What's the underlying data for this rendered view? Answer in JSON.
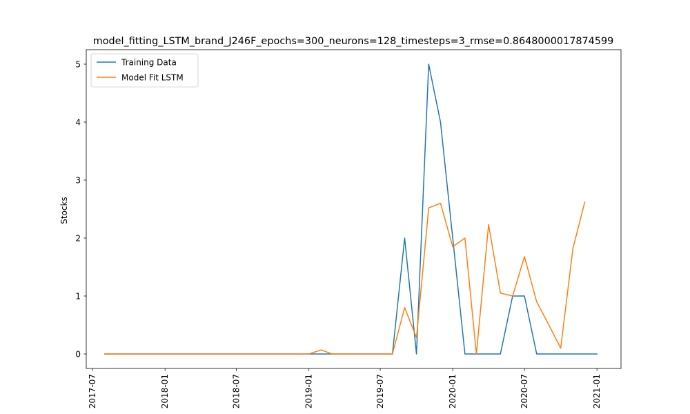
{
  "chart_data": {
    "type": "line",
    "title": "model_fitting_LSTM_brand_J246F_epochs=300_neurons=128_timesteps=3_rmse=0.8648000017874599",
    "xlabel": "",
    "ylabel": "Stocks",
    "x_ticks": [
      "2017-07",
      "2018-01",
      "2018-07",
      "2019-01",
      "2019-07",
      "2020-01",
      "2020-07",
      "2021-01"
    ],
    "y_ticks": [
      0,
      1,
      2,
      3,
      4,
      5
    ],
    "ylim": [
      -0.25,
      5.25
    ],
    "xlim": [
      "2017-06-15",
      "2021-03-03"
    ],
    "grid": false,
    "legend_position": "top-left",
    "series": [
      {
        "name": "Training Data",
        "color": "#1f77b4",
        "x": [
          "2017-08-01",
          "2017-09-01",
          "2017-10-01",
          "2017-11-01",
          "2017-12-01",
          "2018-01-01",
          "2018-02-01",
          "2018-03-01",
          "2018-04-01",
          "2018-05-01",
          "2018-06-01",
          "2018-07-01",
          "2018-08-01",
          "2018-09-01",
          "2018-10-01",
          "2018-11-01",
          "2018-12-01",
          "2019-01-01",
          "2019-02-01",
          "2019-03-01",
          "2019-04-01",
          "2019-05-01",
          "2019-06-01",
          "2019-07-01",
          "2019-08-01",
          "2019-09-01",
          "2019-10-01",
          "2019-11-01",
          "2019-12-01",
          "2020-01-01",
          "2020-02-01",
          "2020-03-01",
          "2020-04-01",
          "2020-05-01",
          "2020-06-01",
          "2020-07-01",
          "2020-08-01",
          "2020-09-01",
          "2020-10-01",
          "2020-11-01",
          "2020-12-01",
          "2021-01-01"
        ],
        "y": [
          0,
          0,
          0,
          0,
          0,
          0,
          0,
          0,
          0,
          0,
          0,
          0,
          0,
          0,
          0,
          0,
          0,
          0,
          0,
          0,
          0,
          0,
          0,
          0,
          0,
          2,
          0,
          5,
          4,
          2,
          0,
          0,
          0,
          0,
          1,
          1,
          0,
          0,
          0,
          0,
          0,
          0
        ]
      },
      {
        "name": "Model Fit LSTM",
        "color": "#ff7f0e",
        "x": [
          "2017-08-01",
          "2017-09-01",
          "2017-10-01",
          "2017-11-01",
          "2017-12-01",
          "2018-01-01",
          "2018-02-01",
          "2018-03-01",
          "2018-04-01",
          "2018-05-01",
          "2018-06-01",
          "2018-07-01",
          "2018-08-01",
          "2018-09-01",
          "2018-10-01",
          "2018-11-01",
          "2018-12-01",
          "2019-01-01",
          "2019-02-01",
          "2019-03-01",
          "2019-04-01",
          "2019-05-01",
          "2019-06-01",
          "2019-07-01",
          "2019-08-01",
          "2019-09-01",
          "2019-10-01",
          "2019-11-01",
          "2019-12-01",
          "2020-01-01",
          "2020-02-01",
          "2020-03-01",
          "2020-04-01",
          "2020-05-01",
          "2020-06-01",
          "2020-07-01",
          "2020-08-01",
          "2020-09-01",
          "2020-10-01",
          "2020-11-01",
          "2020-12-01",
          "2021-01-01"
        ],
        "y": [
          0,
          0,
          0,
          0,
          0,
          0,
          0,
          0,
          0,
          0,
          0,
          0,
          0,
          0,
          0,
          0,
          0,
          0,
          0.07,
          0,
          0,
          0,
          0,
          0,
          0,
          0.8,
          0.28,
          2.52,
          2.6,
          1.85,
          2.0,
          0.0,
          2.23,
          1.05,
          1.0,
          1.68,
          0.9,
          0.5,
          0.1,
          1.82,
          2.62,
          null
        ]
      }
    ]
  }
}
